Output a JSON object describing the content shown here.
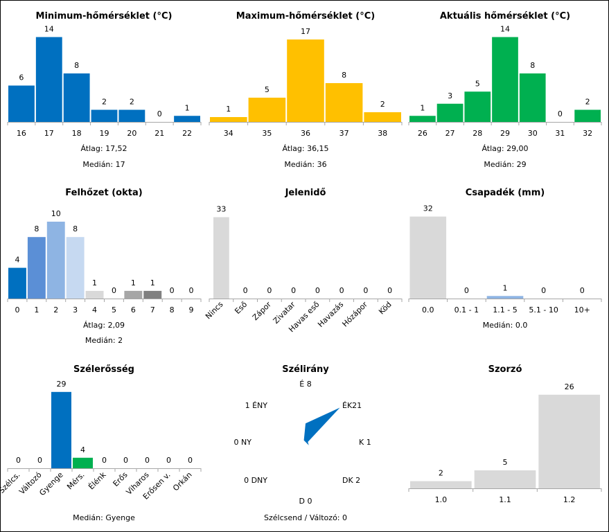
{
  "chart_data": [
    {
      "id": "min_temp",
      "type": "bar",
      "title": "Minimum-hőmérséklet (°C)",
      "categories": [
        "16",
        "17",
        "18",
        "19",
        "20",
        "21",
        "22"
      ],
      "values": [
        6,
        14,
        8,
        2,
        2,
        0,
        1
      ],
      "colors": [
        "#0070c0"
      ],
      "stats": [
        "Átlag: 17,52",
        "Medián: 17"
      ]
    },
    {
      "id": "max_temp",
      "type": "bar",
      "title": "Maximum-hőmérséklet (°C)",
      "categories": [
        "34",
        "35",
        "36",
        "37",
        "38"
      ],
      "values": [
        1,
        5,
        17,
        8,
        2
      ],
      "colors": [
        "#ffc000"
      ],
      "stats": [
        "Átlag: 36,15",
        "Medián: 36"
      ]
    },
    {
      "id": "cur_temp",
      "type": "bar",
      "title": "Aktuális hőmérséklet (°C)",
      "categories": [
        "26",
        "27",
        "28",
        "29",
        "30",
        "31",
        "32"
      ],
      "values": [
        1,
        3,
        5,
        14,
        8,
        0,
        2
      ],
      "colors": [
        "#00b050"
      ],
      "stats": [
        "Átlag: 29,00",
        "Medián: 29"
      ]
    },
    {
      "id": "cloud",
      "type": "bar",
      "title": "Felhőzet (okta)",
      "categories": [
        "0",
        "1",
        "2",
        "3",
        "4",
        "5",
        "6",
        "7",
        "8",
        "9"
      ],
      "values": [
        4,
        8,
        10,
        8,
        1,
        0,
        1,
        1,
        0,
        0
      ],
      "colors": [
        "#0070c0",
        "#5b8fd6",
        "#8eb4e3",
        "#c6d9f1",
        "#d9d9d9",
        "#d9d9d9",
        "#a6a6a6",
        "#808080",
        "#d9d9d9",
        "#d9d9d9"
      ],
      "stats": [
        "Átlag: 2,09",
        "Medián: 2"
      ]
    },
    {
      "id": "weather",
      "type": "bar",
      "title": "Jelenidő",
      "categories": [
        "Nincs",
        "Eső",
        "Zápor",
        "Zivatar",
        "Havas eső",
        "Havazás",
        "Hózápor",
        "Köd"
      ],
      "values": [
        33,
        0,
        0,
        0,
        0,
        0,
        0,
        0
      ],
      "colors": [
        "#d9d9d9"
      ],
      "stats": []
    },
    {
      "id": "precip",
      "type": "bar",
      "title": "Csapadék (mm)",
      "categories": [
        "0.0",
        "0.1 - 1",
        "1.1 - 5",
        "5.1 - 10",
        "10+"
      ],
      "values": [
        32,
        0,
        1,
        0,
        0
      ],
      "colors": [
        "#d9d9d9",
        "#d9d9d9",
        "#8eb4e3",
        "#d9d9d9",
        "#d9d9d9"
      ],
      "stats": [
        "Medián: 0.0"
      ]
    },
    {
      "id": "wind_strength",
      "type": "bar",
      "title": "Szélerősség",
      "categories": [
        "Szélcs.",
        "Változó",
        "Gyenge",
        "Mérs.",
        "Élénk",
        "Erős",
        "Viharos",
        "Erősen v.",
        "Orkán"
      ],
      "values": [
        0,
        0,
        29,
        4,
        0,
        0,
        0,
        0,
        0
      ],
      "colors": [
        "#d9d9d9",
        "#d9d9d9",
        "#0070c0",
        "#00b050",
        "#d9d9d9",
        "#d9d9d9",
        "#d9d9d9",
        "#d9d9d9",
        "#d9d9d9"
      ],
      "stats": [
        "Medián: Gyenge"
      ]
    },
    {
      "id": "wind_dir",
      "type": "radar",
      "title": "Szélirány",
      "directions": [
        "É",
        "ÉK",
        "K",
        "DK",
        "D",
        "DNY",
        "NY",
        "ÉNY"
      ],
      "values": [
        8,
        21,
        1,
        2,
        0,
        0,
        0,
        1
      ],
      "color": "#0070c0",
      "note": "Szélcsend / Változó: 0"
    },
    {
      "id": "factor",
      "type": "bar",
      "title": "Szorzó",
      "categories": [
        "1.0",
        "1.1",
        "1.2"
      ],
      "values": [
        2,
        5,
        26
      ],
      "colors": [
        "#d9d9d9"
      ],
      "stats": []
    }
  ]
}
